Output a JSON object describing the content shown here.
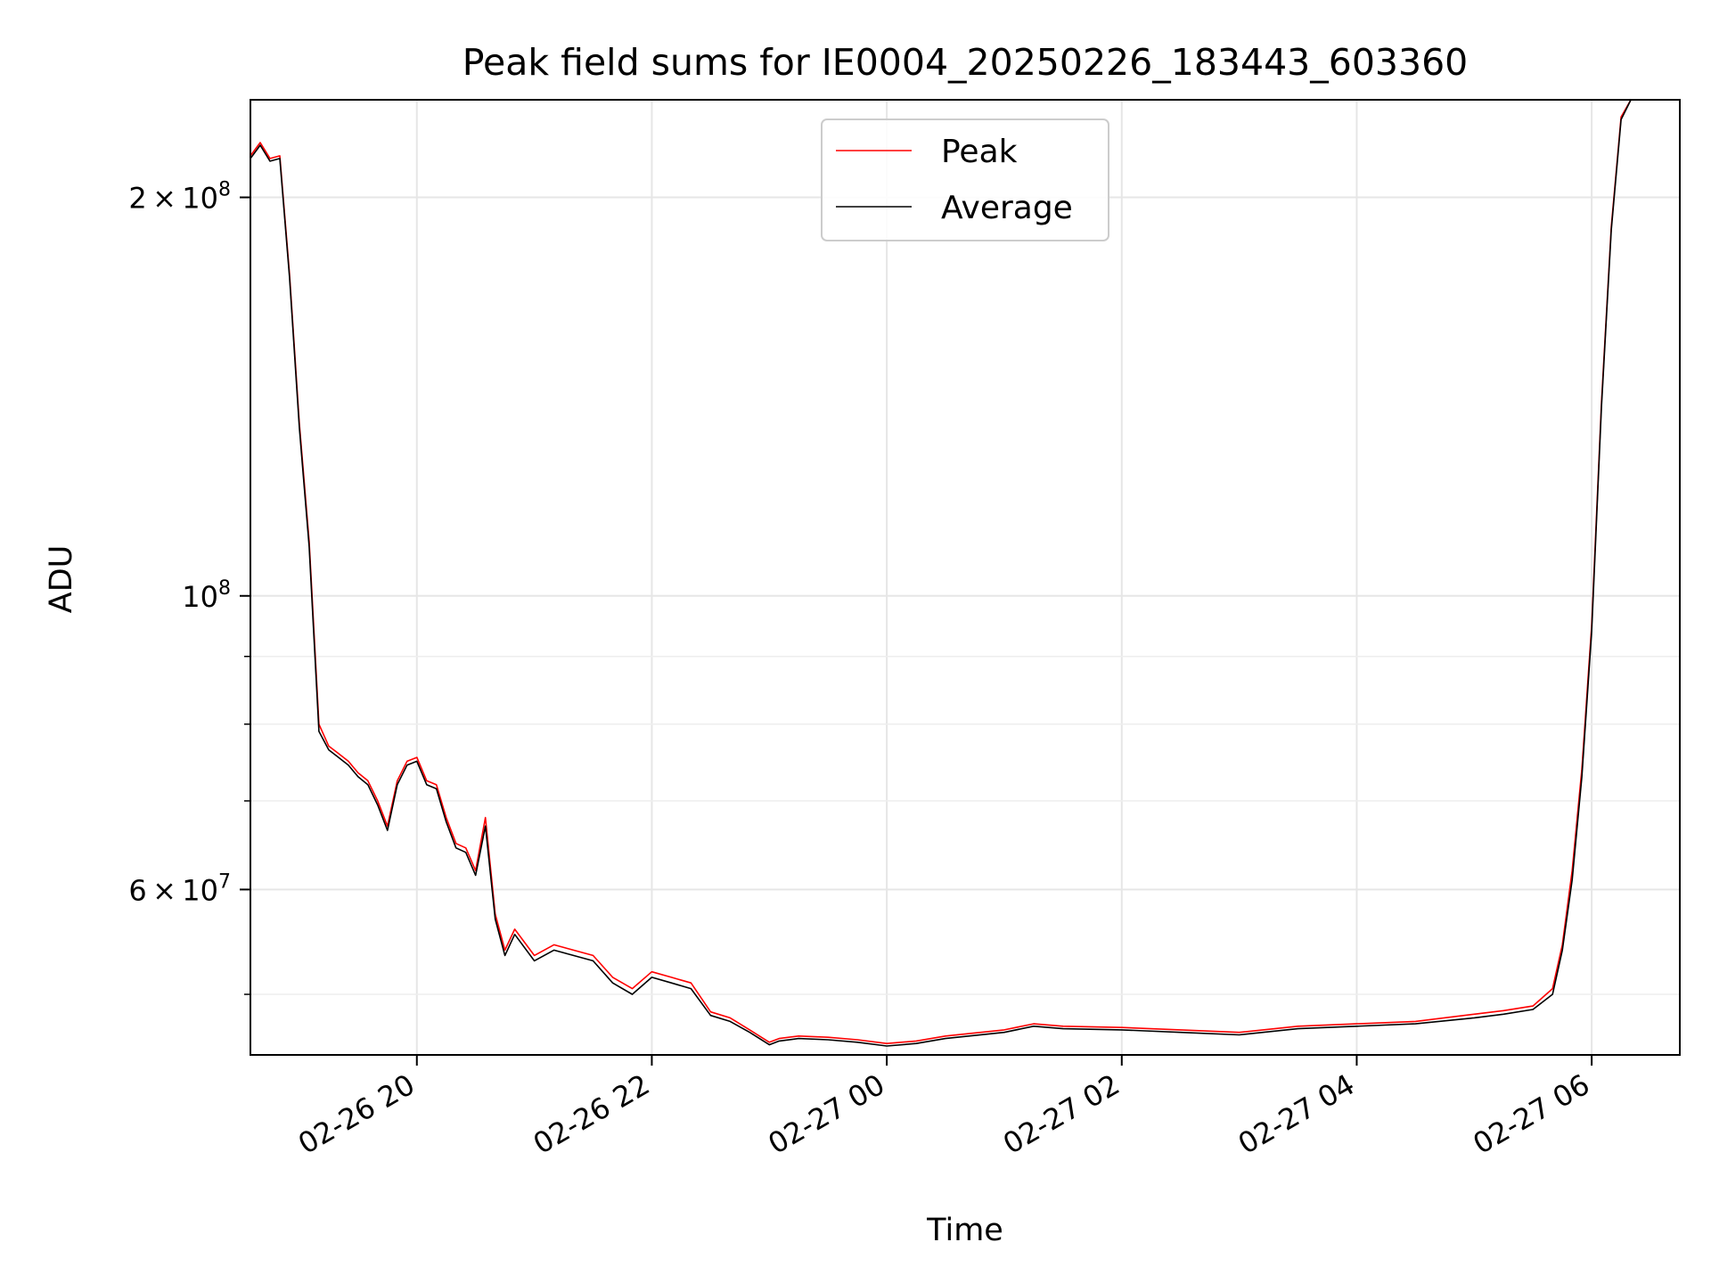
{
  "chart_data": {
    "type": "line",
    "title": "Peak field sums for IE0004_20250226_183443_603360",
    "xlabel": "Time",
    "ylabel": "ADU",
    "y_scale": "log",
    "ylim": [
      45000000,
      237000000
    ],
    "xlim": [
      "2025-02-26 18:35",
      "2025-02-27 06:45"
    ],
    "grid": true,
    "legend": {
      "placement": "upper center",
      "entries": [
        "Peak",
        "Average"
      ]
    },
    "x_ticks": [
      {
        "value": "2025-02-26 20:00",
        "label": "02-26 20"
      },
      {
        "value": "2025-02-26 22:00",
        "label": "02-26 22"
      },
      {
        "value": "2025-02-27 00:00",
        "label": "02-27 00"
      },
      {
        "value": "2025-02-27 02:00",
        "label": "02-27 02"
      },
      {
        "value": "2025-02-27 04:00",
        "label": "02-27 04"
      },
      {
        "value": "2025-02-27 06:00",
        "label": "02-27 06"
      }
    ],
    "y_major_ticks": [
      {
        "value": 60000000,
        "base": "6",
        "exponent": "7"
      },
      {
        "value": 100000000,
        "base": "",
        "exponent": "8"
      },
      {
        "value": 200000000,
        "base": "2",
        "exponent": "8"
      }
    ],
    "y_minor_ticks": [
      50000000,
      70000000,
      80000000,
      90000000
    ],
    "series": [
      {
        "name": "Peak",
        "color": "#ff0000",
        "x": [
          "2025-02-26 18:35",
          "2025-02-26 18:40",
          "2025-02-26 18:45",
          "2025-02-26 18:50",
          "2025-02-26 18:55",
          "2025-02-26 19:00",
          "2025-02-26 19:05",
          "2025-02-26 19:10",
          "2025-02-26 19:15",
          "2025-02-26 19:20",
          "2025-02-26 19:25",
          "2025-02-26 19:30",
          "2025-02-26 19:35",
          "2025-02-26 19:40",
          "2025-02-26 19:45",
          "2025-02-26 19:50",
          "2025-02-26 19:55",
          "2025-02-26 20:00",
          "2025-02-26 20:05",
          "2025-02-26 20:10",
          "2025-02-26 20:15",
          "2025-02-26 20:20",
          "2025-02-26 20:25",
          "2025-02-26 20:30",
          "2025-02-26 20:35",
          "2025-02-26 20:40",
          "2025-02-26 20:45",
          "2025-02-26 20:50",
          "2025-02-26 21:00",
          "2025-02-26 21:10",
          "2025-02-26 21:20",
          "2025-02-26 21:30",
          "2025-02-26 21:40",
          "2025-02-26 21:50",
          "2025-02-26 22:00",
          "2025-02-26 22:10",
          "2025-02-26 22:20",
          "2025-02-26 22:30",
          "2025-02-26 22:40",
          "2025-02-26 22:50",
          "2025-02-26 23:00",
          "2025-02-26 23:05",
          "2025-02-26 23:15",
          "2025-02-26 23:30",
          "2025-02-26 23:45",
          "2025-02-27 00:00",
          "2025-02-27 00:15",
          "2025-02-27 00:30",
          "2025-02-27 01:00",
          "2025-02-27 01:15",
          "2025-02-27 01:30",
          "2025-02-27 02:00",
          "2025-02-27 02:30",
          "2025-02-27 03:00",
          "2025-02-27 03:30",
          "2025-02-27 04:00",
          "2025-02-27 04:30",
          "2025-02-27 05:00",
          "2025-02-27 05:15",
          "2025-02-27 05:30",
          "2025-02-27 05:40",
          "2025-02-27 05:45",
          "2025-02-27 05:50",
          "2025-02-27 05:55",
          "2025-02-27 06:00",
          "2025-02-27 06:05",
          "2025-02-27 06:10",
          "2025-02-27 06:15",
          "2025-02-27 06:20",
          "2025-02-27 06:25",
          "2025-02-27 06:30"
        ],
        "y": [
          215000000,
          220000000,
          214000000,
          215000000,
          175000000,
          135000000,
          110000000,
          80000000,
          77000000,
          76000000,
          75000000,
          73500000,
          72500000,
          70000000,
          67000000,
          72500000,
          75000000,
          75500000,
          72500000,
          72000000,
          68000000,
          65000000,
          64500000,
          62000000,
          68000000,
          57500000,
          54000000,
          56000000,
          53500000,
          54500000,
          54000000,
          53500000,
          51500000,
          50500000,
          52000000,
          51500000,
          51000000,
          48500000,
          48000000,
          47000000,
          46000000,
          46300000,
          46500000,
          46400000,
          46200000,
          45900000,
          46100000,
          46500000,
          47000000,
          47500000,
          47300000,
          47200000,
          47000000,
          46800000,
          47300000,
          47500000,
          47700000,
          48300000,
          48600000,
          49000000,
          50500000,
          54500000,
          62000000,
          74000000,
          95000000,
          140000000,
          190000000,
          230000000,
          237000000,
          237000000,
          237000000
        ]
      },
      {
        "name": "Average",
        "color": "#000000",
        "x": [
          "2025-02-26 18:35",
          "2025-02-26 18:40",
          "2025-02-26 18:45",
          "2025-02-26 18:50",
          "2025-02-26 18:55",
          "2025-02-26 19:00",
          "2025-02-26 19:05",
          "2025-02-26 19:10",
          "2025-02-26 19:15",
          "2025-02-26 19:20",
          "2025-02-26 19:25",
          "2025-02-26 19:30",
          "2025-02-26 19:35",
          "2025-02-26 19:40",
          "2025-02-26 19:45",
          "2025-02-26 19:50",
          "2025-02-26 19:55",
          "2025-02-26 20:00",
          "2025-02-26 20:05",
          "2025-02-26 20:10",
          "2025-02-26 20:15",
          "2025-02-26 20:20",
          "2025-02-26 20:25",
          "2025-02-26 20:30",
          "2025-02-26 20:35",
          "2025-02-26 20:40",
          "2025-02-26 20:45",
          "2025-02-26 20:50",
          "2025-02-26 21:00",
          "2025-02-26 21:10",
          "2025-02-26 21:20",
          "2025-02-26 21:30",
          "2025-02-26 21:40",
          "2025-02-26 21:50",
          "2025-02-26 22:00",
          "2025-02-26 22:10",
          "2025-02-26 22:20",
          "2025-02-26 22:30",
          "2025-02-26 22:40",
          "2025-02-26 22:50",
          "2025-02-26 23:00",
          "2025-02-26 23:05",
          "2025-02-26 23:15",
          "2025-02-26 23:30",
          "2025-02-26 23:45",
          "2025-02-27 00:00",
          "2025-02-27 00:15",
          "2025-02-27 00:30",
          "2025-02-27 01:00",
          "2025-02-27 01:15",
          "2025-02-27 01:30",
          "2025-02-27 02:00",
          "2025-02-27 02:30",
          "2025-02-27 03:00",
          "2025-02-27 03:30",
          "2025-02-27 04:00",
          "2025-02-27 04:30",
          "2025-02-27 05:00",
          "2025-02-27 05:15",
          "2025-02-27 05:30",
          "2025-02-27 05:40",
          "2025-02-27 05:45",
          "2025-02-27 05:50",
          "2025-02-27 05:55",
          "2025-02-27 06:00",
          "2025-02-27 06:05",
          "2025-02-27 06:10",
          "2025-02-27 06:15",
          "2025-02-27 06:20",
          "2025-02-27 06:25",
          "2025-02-27 06:30"
        ],
        "y": [
          214000000,
          219000000,
          213000000,
          214000000,
          174000000,
          134000000,
          109000000,
          79000000,
          76500000,
          75500000,
          74500000,
          73000000,
          72000000,
          69500000,
          66500000,
          72000000,
          74500000,
          75000000,
          72000000,
          71500000,
          67500000,
          64500000,
          64000000,
          61500000,
          67000000,
          57000000,
          53500000,
          55500000,
          53000000,
          54000000,
          53500000,
          53000000,
          51000000,
          50000000,
          51500000,
          51000000,
          50500000,
          48200000,
          47700000,
          46800000,
          45800000,
          46100000,
          46300000,
          46200000,
          46000000,
          45700000,
          45900000,
          46300000,
          46800000,
          47300000,
          47100000,
          47000000,
          46800000,
          46600000,
          47100000,
          47300000,
          47500000,
          48000000,
          48300000,
          48700000,
          50000000,
          54000000,
          61000000,
          73000000,
          94000000,
          139000000,
          189000000,
          229000000,
          237000000,
          237000000,
          237000000
        ]
      }
    ]
  }
}
